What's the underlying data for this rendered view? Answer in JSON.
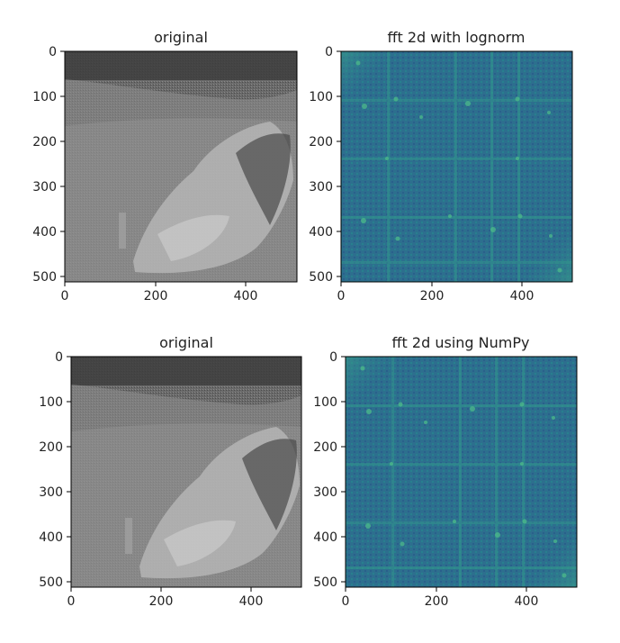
{
  "figure": {
    "panels": [
      {
        "title": "original",
        "kind": "photo"
      },
      {
        "title": "fft 2d with lognorm",
        "kind": "fft"
      },
      {
        "title": "original",
        "kind": "photo"
      },
      {
        "title": "fft 2d using NumPy",
        "kind": "fft"
      }
    ]
  },
  "chart_data": [
    {
      "type": "heatmap",
      "title": "original",
      "colormap": "gray",
      "xlim": [
        0,
        511
      ],
      "ylim": [
        511,
        0
      ],
      "xticks": [
        0,
        200,
        400
      ],
      "yticks": [
        0,
        100,
        200,
        300,
        400,
        500
      ]
    },
    {
      "type": "heatmap",
      "title": "fft 2d with lognorm",
      "colormap": "viridis",
      "xlim": [
        0,
        511
      ],
      "ylim": [
        511,
        0
      ],
      "xticks": [
        0,
        200,
        400
      ],
      "yticks": [
        0,
        100,
        200,
        300,
        400,
        500
      ]
    },
    {
      "type": "heatmap",
      "title": "original",
      "colormap": "gray",
      "xlim": [
        0,
        511
      ],
      "ylim": [
        511,
        0
      ],
      "xticks": [
        0,
        200,
        400
      ],
      "yticks": [
        0,
        100,
        200,
        300,
        400,
        500
      ]
    },
    {
      "type": "heatmap",
      "title": "fft 2d using NumPy",
      "colormap": "viridis",
      "xlim": [
        0,
        511
      ],
      "ylim": [
        511,
        0
      ],
      "xticks": [
        0,
        200,
        400
      ],
      "yticks": [
        0,
        100,
        200,
        300,
        400,
        500
      ]
    }
  ]
}
